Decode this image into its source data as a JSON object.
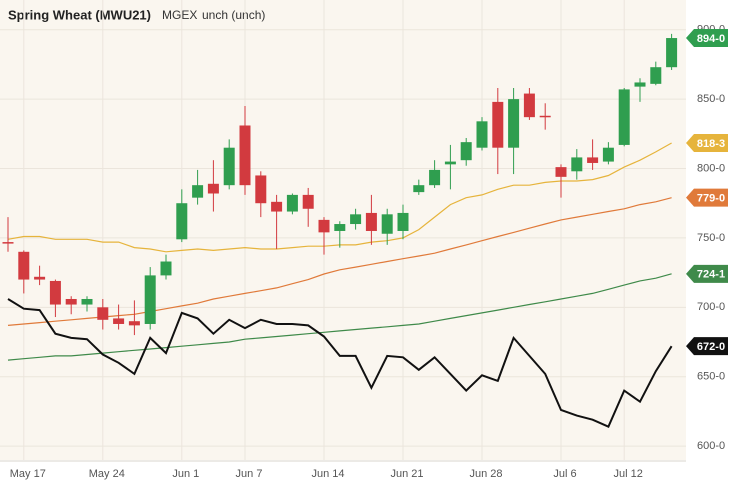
{
  "chart_data": {
    "type": "candlestick",
    "title": "Spring Wheat (MWU21)",
    "exchange": "MGEX",
    "change": "unch (unch)",
    "categories": [
      null,
      "May 17",
      null,
      null,
      null,
      null,
      "May 24",
      null,
      null,
      null,
      null,
      "Jun 1",
      null,
      null,
      null,
      "Jun 7",
      null,
      null,
      null,
      null,
      "Jun 14",
      null,
      null,
      null,
      null,
      "Jun 21",
      null,
      null,
      null,
      null,
      "Jun 28",
      null,
      null,
      null,
      null,
      "Jul 6",
      null,
      null,
      null,
      "Jul 12",
      null,
      null,
      null
    ],
    "open": [
      747,
      740,
      722,
      719,
      706,
      702,
      700,
      692,
      690,
      688,
      723,
      749,
      779,
      789,
      788,
      831,
      795,
      776,
      769,
      781,
      763,
      755,
      760,
      768,
      753,
      755,
      783,
      788,
      803,
      806,
      815,
      848,
      815,
      854,
      838,
      801,
      798,
      808,
      805,
      817,
      859,
      861,
      873
    ],
    "high": [
      765,
      741,
      730,
      720,
      708,
      708,
      706,
      702,
      705,
      729,
      738,
      785,
      799,
      806,
      821,
      845,
      798,
      781,
      782,
      786,
      765,
      762,
      771,
      781,
      771,
      774,
      792,
      806,
      817,
      822,
      837,
      858,
      858,
      858,
      847,
      803,
      814,
      821,
      819,
      858,
      865,
      877,
      897
    ],
    "low": [
      740,
      710,
      716,
      693,
      695,
      697,
      684,
      684,
      680,
      684,
      720,
      747,
      774,
      769,
      785,
      781,
      765,
      742,
      767,
      758,
      738,
      743,
      756,
      745,
      745,
      749,
      781,
      786,
      785,
      802,
      813,
      796,
      796,
      835,
      828,
      779,
      792,
      799,
      803,
      816,
      848,
      860,
      871
    ],
    "close": [
      746,
      720,
      720,
      702,
      702,
      706,
      691,
      688,
      687,
      723,
      733,
      775,
      788,
      782,
      815,
      788,
      775,
      769,
      781,
      771,
      754,
      760,
      767,
      755,
      767,
      768,
      788,
      799,
      805,
      819,
      834,
      815,
      850,
      837,
      837,
      794,
      808,
      804,
      815,
      857,
      862,
      873,
      894
    ],
    "value_labels": [
      null,
      null,
      null,
      null,
      null,
      null,
      null,
      null,
      null,
      null,
      null,
      null,
      null,
      null,
      null,
      null,
      null,
      null,
      null,
      null,
      null,
      null,
      null,
      null,
      null,
      null,
      null,
      null,
      null,
      null,
      null,
      null,
      null,
      null,
      null,
      null,
      null,
      null,
      null,
      null,
      null,
      null,
      "894-0"
    ],
    "up_color": "#2f9e4f",
    "down_color": "#d23a3f",
    "lines": [
      {
        "color": "#e6b43c",
        "values": [
          749,
          751,
          751,
          749,
          749,
          749,
          747,
          747,
          743,
          742,
          740,
          741,
          742,
          741,
          742,
          743,
          742,
          742,
          743,
          744,
          744,
          745,
          745,
          747,
          748,
          750,
          756,
          765,
          774,
          779,
          781,
          785,
          788,
          788,
          790,
          791,
          791,
          792,
          795,
          801,
          806,
          812,
          818.375
        ],
        "value_labels": [
          null,
          null,
          null,
          null,
          null,
          null,
          null,
          null,
          null,
          null,
          null,
          null,
          null,
          null,
          null,
          null,
          null,
          null,
          null,
          null,
          null,
          null,
          null,
          null,
          null,
          null,
          null,
          null,
          null,
          null,
          null,
          null,
          null,
          null,
          null,
          null,
          null,
          null,
          null,
          null,
          null,
          null,
          "818-3"
        ]
      },
      {
        "color": "#e07a3a",
        "values": [
          687,
          688,
          689,
          690,
          691,
          692,
          693,
          694,
          695,
          697,
          699,
          701,
          703,
          706,
          708,
          710,
          712,
          714,
          717,
          720,
          724,
          727,
          729,
          731,
          733,
          735,
          737,
          739,
          742,
          745,
          748,
          751,
          754,
          757,
          760,
          763,
          765,
          767,
          769,
          771,
          774,
          776,
          779
        ],
        "value_labels": [
          null,
          null,
          null,
          null,
          null,
          null,
          null,
          null,
          null,
          null,
          null,
          null,
          null,
          null,
          null,
          null,
          null,
          null,
          null,
          null,
          null,
          null,
          null,
          null,
          null,
          null,
          null,
          null,
          null,
          null,
          null,
          null,
          null,
          null,
          null,
          null,
          null,
          null,
          null,
          null,
          null,
          null,
          "779-0"
        ]
      },
      {
        "color": "#3f8a4a",
        "values": [
          662,
          663,
          664,
          665,
          665,
          666,
          667,
          668,
          669,
          670,
          671,
          672,
          673,
          674,
          675,
          677,
          678,
          679,
          680,
          681,
          682,
          683,
          684,
          685,
          686,
          687,
          688,
          690,
          692,
          694,
          696,
          698,
          700,
          702,
          704,
          706,
          708,
          710,
          713,
          716,
          719,
          721,
          724.125
        ],
        "value_labels": [
          null,
          null,
          null,
          null,
          null,
          null,
          null,
          null,
          null,
          null,
          null,
          null,
          null,
          null,
          null,
          null,
          null,
          null,
          null,
          null,
          null,
          null,
          null,
          null,
          null,
          null,
          null,
          null,
          null,
          null,
          null,
          null,
          null,
          null,
          null,
          null,
          null,
          null,
          null,
          null,
          null,
          null,
          "724-1"
        ]
      },
      {
        "color": "#111111",
        "values": [
          706,
          699,
          698,
          681,
          678,
          677,
          666,
          660,
          652,
          678,
          667,
          696,
          692,
          681,
          691,
          685,
          691,
          688,
          688,
          687,
          679,
          665,
          665,
          642,
          665,
          664,
          655,
          664,
          652,
          640,
          651,
          647,
          678,
          665,
          652,
          626,
          622,
          619,
          614,
          640,
          632,
          654,
          672
        ],
        "value_labels": [
          null,
          null,
          null,
          null,
          null,
          null,
          null,
          null,
          null,
          null,
          null,
          null,
          null,
          null,
          null,
          null,
          null,
          null,
          null,
          null,
          null,
          null,
          null,
          null,
          null,
          null,
          null,
          null,
          null,
          null,
          null,
          null,
          null,
          null,
          null,
          null,
          null,
          null,
          null,
          null,
          null,
          null,
          "672-0"
        ]
      }
    ],
    "ylim": [
      590,
      907
    ],
    "yticks": [
      {
        "value": 600,
        "label": "600-0"
      },
      {
        "value": 650,
        "label": "650-0"
      },
      {
        "value": 700,
        "label": "700-0"
      },
      {
        "value": 750,
        "label": "750-0"
      },
      {
        "value": 800,
        "label": "800-0"
      },
      {
        "value": 850,
        "label": "850-0"
      },
      {
        "value": 900,
        "label": "900-0"
      }
    ],
    "grid": true
  }
}
